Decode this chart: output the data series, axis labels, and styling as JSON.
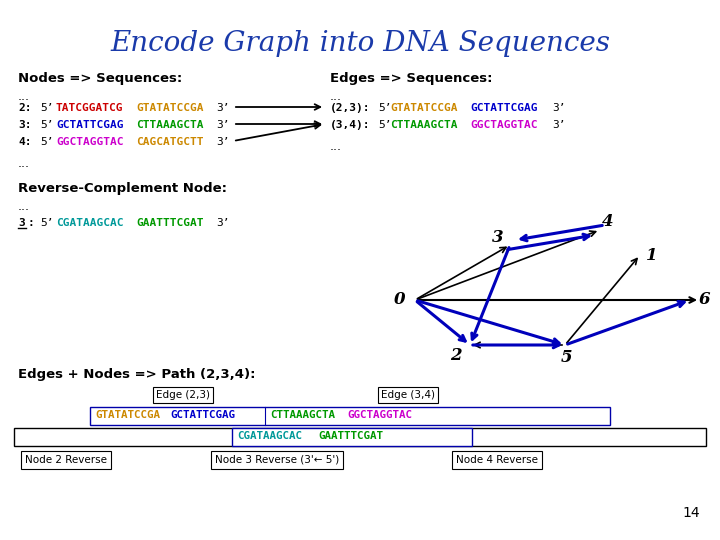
{
  "title": "Encode Graph into DNA Sequences",
  "title_color": "#1a3aaa",
  "title_fontsize": 20,
  "bg_color": "#ffffff",
  "nodes_label": "Nodes => Sequences:",
  "edges_label": "Edges => Sequences:",
  "node_lines": [
    {
      "prefix": "2:",
      "p5": "5’",
      "seq1": "TATCGGATCG",
      "seq1_color": "#cc0000",
      "seq2": "GTATATCCGA",
      "seq2_color": "#cc8800",
      "p3": "3’"
    },
    {
      "prefix": "3:",
      "p5": "5’",
      "seq1": "GCTATTCGAG",
      "seq1_color": "#0000cc",
      "seq2": "CTTAAAGCTA",
      "seq2_color": "#009900",
      "p3": "3’"
    },
    {
      "prefix": "4:",
      "p5": "5’",
      "seq1": "GGCTAGGTAC",
      "seq1_color": "#cc00cc",
      "seq2": "CAGCATGCTT",
      "seq2_color": "#cc8800",
      "p3": "3’"
    }
  ],
  "edge_lines": [
    {
      "prefix": "(2,3):",
      "p5": "5’",
      "seq1": "GTATATCCGA",
      "seq1_color": "#cc8800",
      "seq2": "GCTATTCGAG",
      "seq2_color": "#0000cc",
      "p3": "3’"
    },
    {
      "prefix": "(3,4):",
      "p5": "5’",
      "seq1": "CTTAAAGCTA",
      "seq1_color": "#009900",
      "seq2": "GGCTAGGTAC",
      "seq2_color": "#cc00cc",
      "p3": "3’"
    }
  ],
  "rc_label": "Reverse-Complement Node:",
  "rc_line": {
    "prefix": "3:",
    "p5": "5’",
    "seq1": "CGATAAGCAC",
    "seq1_color": "#009999",
    "seq2": "GAATTTCGAT",
    "seq2_color": "#009900",
    "p3": "3’"
  },
  "path_label": "Edges + Nodes => Path (2,3,4):",
  "page_number": "14"
}
